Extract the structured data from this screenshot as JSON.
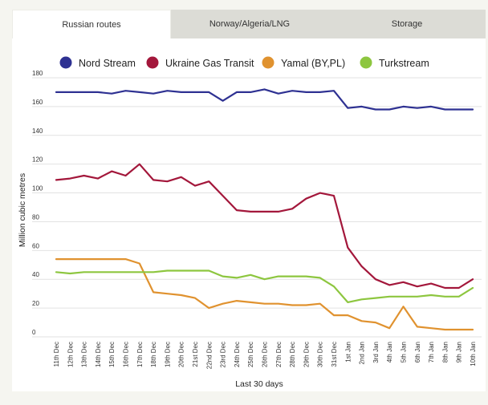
{
  "tabs": [
    {
      "label": "Russian routes",
      "active": true
    },
    {
      "label": "Norway/Algeria/LNG",
      "active": false
    },
    {
      "label": "Storage",
      "active": false
    }
  ],
  "chart_data": {
    "type": "line",
    "title": "",
    "xlabel": "Last 30 days",
    "ylabel": "Million cubic metres",
    "ylim": [
      0,
      180
    ],
    "yticks": [
      0,
      20,
      40,
      60,
      80,
      100,
      120,
      140,
      160,
      180
    ],
    "grid": true,
    "legend_position": "top",
    "categories": [
      "11th Dec",
      "12th Dec",
      "13th Dec",
      "14th Dec",
      "15th Dec",
      "16th Dec",
      "17th Dec",
      "18th Dec",
      "19th Dec",
      "20th Dec",
      "21st Dec",
      "22nd Dec",
      "23rd Dec",
      "24th Dec",
      "25th Dec",
      "26th Dec",
      "27th Dec",
      "28th Dec",
      "29th Dec",
      "30th Dec",
      "31st Dec",
      "1st Jan",
      "2nd Jan",
      "3rd Jan",
      "4th Jan",
      "5th Jan",
      "6th Jan",
      "7th Jan",
      "8th Jan",
      "9th Jan",
      "10th Jan"
    ],
    "series": [
      {
        "name": "Nord Stream",
        "color": "#2e3192",
        "values": [
          170,
          170,
          170,
          170,
          169,
          171,
          170,
          169,
          171,
          170,
          170,
          170,
          164,
          170,
          170,
          172,
          169,
          171,
          170,
          170,
          171,
          159,
          160,
          158,
          158,
          160,
          159,
          160,
          158,
          158,
          158
        ]
      },
      {
        "name": "Ukraine Gas Transit",
        "color": "#a3173b",
        "values": [
          109,
          110,
          112,
          110,
          115,
          112,
          120,
          109,
          108,
          111,
          105,
          108,
          98,
          88,
          87,
          87,
          87,
          89,
          96,
          100,
          98,
          62,
          49,
          40,
          36,
          38,
          35,
          37,
          34,
          34,
          40
        ]
      },
      {
        "name": "Yamal (BY,PL)",
        "color": "#e0922f",
        "values": [
          54,
          54,
          54,
          54,
          54,
          54,
          51,
          31,
          30,
          29,
          27,
          20,
          23,
          25,
          24,
          23,
          23,
          22,
          22,
          23,
          15,
          15,
          11,
          10,
          6,
          21,
          7,
          6,
          5,
          5,
          5
        ]
      },
      {
        "name": "Turkstream",
        "color": "#8dc63f",
        "values": [
          45,
          44,
          45,
          45,
          45,
          45,
          45,
          45,
          46,
          46,
          46,
          46,
          42,
          41,
          43,
          40,
          42,
          42,
          42,
          41,
          35,
          24,
          26,
          27,
          28,
          28,
          28,
          29,
          28,
          28,
          34
        ]
      }
    ]
  }
}
